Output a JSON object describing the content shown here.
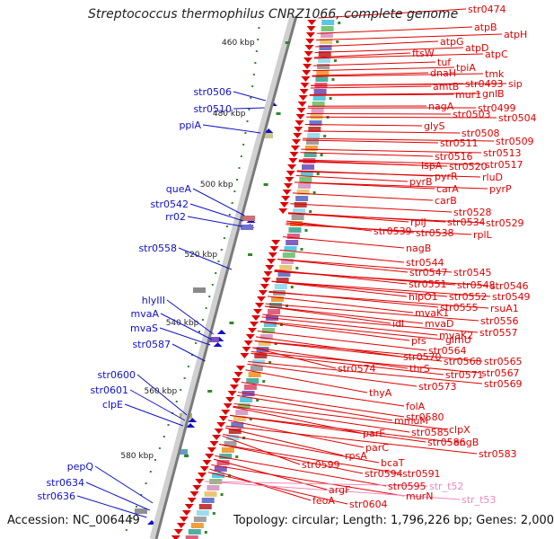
{
  "title": "Streptococcus thermophilus CNRZ1066, complete genome",
  "footer": {
    "accession": "Accession: NC_006449",
    "topology": "Topology: circular; Length: 1,796,226 bp; Genes: 2,000"
  },
  "colors": {
    "backbone": "#888888",
    "forward_feature": "#1010cc",
    "reverse_feature": "#e00000",
    "trna_label": "#ee88bb",
    "tick": "#2a8a2a"
  },
  "position_ticks": [
    "460 kbp",
    "480 kbp",
    "500 kbp",
    "520 kbp",
    "540 kbp",
    "560 kbp",
    "580 kbp"
  ],
  "forward_labels": [
    "str0506",
    "str0510",
    "ppiA",
    "queA",
    "str0542",
    "rr02",
    "str0558",
    "hlyIII",
    "mvaA",
    "mvaS",
    "str0587",
    "str0600",
    "str0601",
    "clpE",
    "pepQ",
    "str0634",
    "str0636"
  ],
  "reverse_labels": [
    "str0474",
    "atpB",
    "atpH",
    "atpG",
    "atpD",
    "ftsW",
    "atpC",
    "tuf",
    "tpiA",
    "dnaH",
    "tmk",
    "amtB",
    "str0493",
    "sip",
    "mur1",
    "gnlB",
    "nagA",
    "str0499",
    "str0503",
    "str0504",
    "glyS",
    "str0508",
    "str0511",
    "str0509",
    "str0516",
    "str0513",
    "lspA",
    "str0520",
    "str0517",
    "pyrR",
    "rluD",
    "pyrB",
    "carA",
    "pyrP",
    "carB",
    "str0528",
    "rplJ",
    "str0534",
    "str0529",
    "str0539",
    "str0538",
    "rplL",
    "nagB",
    "str0544",
    "str0547",
    "str0545",
    "str0551",
    "str0548",
    "str0546",
    "hipO1",
    "str0552",
    "str0549",
    "str0555",
    "rsuA1",
    "mvaK1",
    "str0556",
    "idi",
    "mvaD",
    "str0557",
    "mvaK2",
    "pfs",
    "glmU",
    "str0564",
    "str0570",
    "str0568",
    "str0565",
    "str0574",
    "thrS",
    "str0571",
    "str0567",
    "str0573",
    "str0569",
    "thyA",
    "folA",
    "str0580",
    "mmuM",
    "clpX",
    "parE",
    "str0585",
    "str0586",
    "engB",
    "parC",
    "str0583",
    "rpsA",
    "bcaT",
    "str0599",
    "str0594",
    "str0591",
    "str0595",
    "murN",
    "argF",
    "feoA",
    "str0604"
  ],
  "trna_labels": [
    "str_t52",
    "str_t53"
  ]
}
